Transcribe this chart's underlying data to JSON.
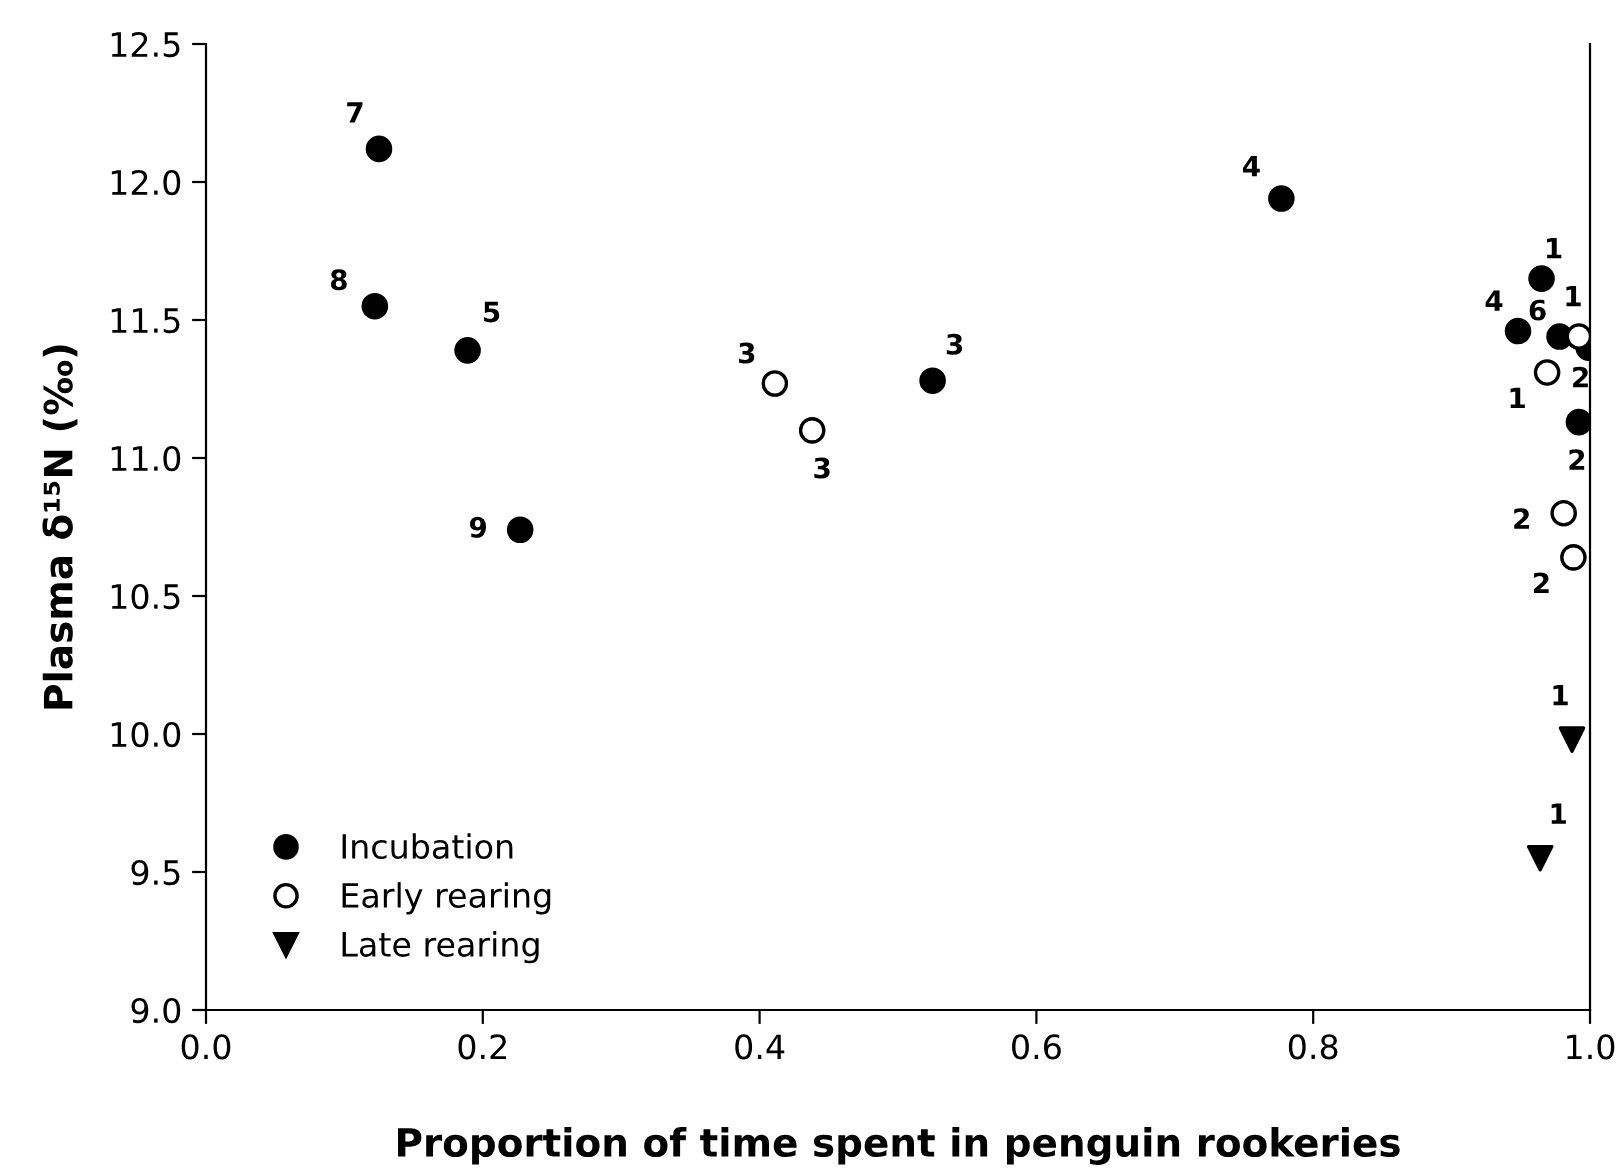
{
  "chart_data": {
    "type": "scatter",
    "xlabel": "Proportion of time spent in penguin rookeries",
    "ylabel": "Plasma δ¹⁵N (‰)",
    "xlim": [
      0,
      1
    ],
    "ylim": [
      9,
      12.5
    ],
    "xticks": [
      {
        "value": 0,
        "label": "0.0"
      },
      0.2,
      0.4,
      0.6,
      0.8,
      {
        "value": 1,
        "label": "1.0"
      }
    ],
    "yticks": [
      {
        "value": 9,
        "label": "9.0"
      },
      9.5,
      {
        "value": 10,
        "label": "10.0"
      },
      10.5,
      {
        "value": 11,
        "label": "11.0"
      },
      11.5,
      {
        "value": 12,
        "label": "12.0"
      },
      12.5
    ],
    "grid": false,
    "legend": "bottom left",
    "series": [
      {
        "name": "Incubation",
        "color": "#000000",
        "marker": "circle",
        "x": [
          0.125,
          0.122,
          0.189,
          0.227,
          0.525,
          0.777,
          0.965,
          0.948,
          0.978,
          0.999,
          0.992
        ],
        "values": [
          12.12,
          11.55,
          11.39,
          10.74,
          11.28,
          11.94,
          11.65,
          11.46,
          11.44,
          11.4,
          11.13
        ]
      },
      {
        "name": "Early rearing",
        "color": "#ffffff",
        "marker": "circle",
        "x": [
          0.411,
          0.438,
          0.992,
          0.969,
          0.981,
          0.988
        ],
        "values": [
          11.27,
          11.1,
          11.44,
          11.31,
          10.8,
          10.64
        ]
      },
      {
        "name": "Late rearing",
        "color": "#000000",
        "marker": "triangle",
        "x": [
          0.987,
          0.964
        ],
        "values": [
          9.98,
          9.55
        ]
      }
    ],
    "annotations": [
      {
        "text": "7",
        "x": 0.125,
        "y": 12.12
      },
      {
        "text": "8",
        "x": 0.122,
        "y": 11.55
      },
      {
        "text": "5",
        "x": 0.189,
        "y": 11.39
      },
      {
        "text": "9",
        "x": 0.227,
        "y": 10.74
      },
      {
        "text": "3",
        "x": 0.525,
        "y": 11.28
      },
      {
        "text": "4",
        "x": 0.777,
        "y": 11.94
      },
      {
        "text": "1",
        "x": 0.965,
        "y": 11.65
      },
      {
        "text": "4",
        "x": 0.948,
        "y": 11.46
      },
      {
        "text": "6",
        "x": 0.978,
        "y": 11.44
      },
      {
        "text": "2",
        "x": 0.999,
        "y": 11.4
      },
      {
        "text": "2",
        "x": 0.992,
        "y": 11.13
      },
      {
        "text": "3",
        "x": 0.411,
        "y": 11.27
      },
      {
        "text": "3",
        "x": 0.438,
        "y": 11.1
      },
      {
        "text": "1",
        "x": 0.992,
        "y": 11.44
      },
      {
        "text": "1",
        "x": 0.969,
        "y": 11.31
      },
      {
        "text": "2",
        "x": 0.981,
        "y": 10.8
      },
      {
        "text": "2",
        "x": 0.988,
        "y": 10.64
      },
      {
        "text": "1",
        "x": 0.987,
        "y": 9.98
      },
      {
        "text": "1",
        "x": 0.964,
        "y": 9.55
      }
    ]
  }
}
